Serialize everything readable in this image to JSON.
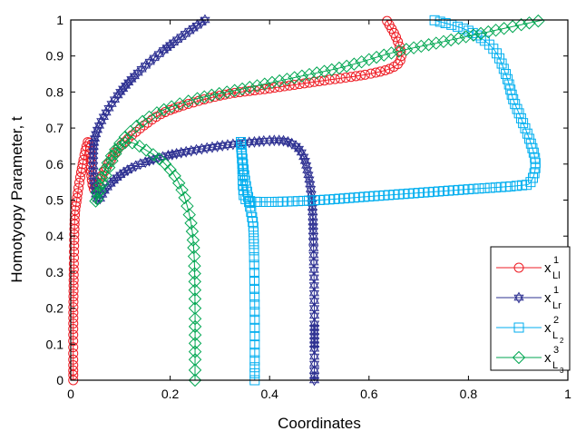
{
  "chart_data": {
    "type": "line",
    "title": "",
    "xlabel": "Coordinates",
    "ylabel": "Homotyopy Parameter, t",
    "xlim": [
      0,
      1
    ],
    "ylim": [
      0,
      1
    ],
    "xticks": [
      "0",
      "0.2",
      "0.4",
      "0.6",
      "0.8",
      "1"
    ],
    "yticks": [
      "0",
      "0.1",
      "0.2",
      "0.3",
      "0.4",
      "0.5",
      "0.6",
      "0.7",
      "0.8",
      "0.9",
      "1"
    ],
    "grid": false,
    "legend_placement": "bottom-right",
    "series": [
      {
        "name": "x_Ll^1",
        "label_base": "x",
        "label_sub": "Ll",
        "label_sup": "1",
        "color": "#ee1c24",
        "marker": "circle",
        "points": [
          [
            0.005,
            0
          ],
          [
            0.005,
            0.15
          ],
          [
            0.006,
            0.3
          ],
          [
            0.008,
            0.45
          ],
          [
            0.012,
            0.5
          ],
          [
            0.02,
            0.57
          ],
          [
            0.03,
            0.64
          ],
          [
            0.037,
            0.665
          ],
          [
            0.04,
            0.62
          ],
          [
            0.042,
            0.56
          ],
          [
            0.048,
            0.53
          ],
          [
            0.06,
            0.56
          ],
          [
            0.08,
            0.61
          ],
          [
            0.1,
            0.65
          ],
          [
            0.15,
            0.71
          ],
          [
            0.2,
            0.75
          ],
          [
            0.3,
            0.79
          ],
          [
            0.4,
            0.81
          ],
          [
            0.5,
            0.83
          ],
          [
            0.6,
            0.85
          ],
          [
            0.65,
            0.87
          ],
          [
            0.665,
            0.9
          ],
          [
            0.655,
            0.95
          ],
          [
            0.635,
            1
          ]
        ]
      },
      {
        "name": "x_Lr^1",
        "label_base": "x",
        "label_sub": "Lr",
        "label_sup": "1",
        "color": "#2e3192",
        "marker": "star",
        "points": [
          [
            0.49,
            0
          ],
          [
            0.49,
            0.2
          ],
          [
            0.488,
            0.4
          ],
          [
            0.485,
            0.5
          ],
          [
            0.478,
            0.57
          ],
          [
            0.465,
            0.63
          ],
          [
            0.44,
            0.66
          ],
          [
            0.4,
            0.665
          ],
          [
            0.3,
            0.65
          ],
          [
            0.2,
            0.625
          ],
          [
            0.14,
            0.6
          ],
          [
            0.1,
            0.57
          ],
          [
            0.07,
            0.53
          ],
          [
            0.055,
            0.5
          ],
          [
            0.047,
            0.55
          ],
          [
            0.045,
            0.62
          ],
          [
            0.05,
            0.68
          ],
          [
            0.07,
            0.74
          ],
          [
            0.1,
            0.8
          ],
          [
            0.14,
            0.86
          ],
          [
            0.2,
            0.93
          ],
          [
            0.27,
            1
          ]
        ]
      },
      {
        "name": "x_L2^2",
        "label_base": "x",
        "label_sub": "L",
        "label_subsub": "2",
        "label_sup": "2",
        "color": "#00aeef",
        "marker": "square",
        "points": [
          [
            0.37,
            0
          ],
          [
            0.37,
            0.2
          ],
          [
            0.368,
            0.4
          ],
          [
            0.365,
            0.45
          ],
          [
            0.358,
            0.5
          ],
          [
            0.35,
            0.56
          ],
          [
            0.345,
            0.62
          ],
          [
            0.342,
            0.665
          ],
          [
            0.345,
            0.6
          ],
          [
            0.347,
            0.53
          ],
          [
            0.355,
            0.5
          ],
          [
            0.4,
            0.495
          ],
          [
            0.5,
            0.5
          ],
          [
            0.6,
            0.51
          ],
          [
            0.7,
            0.52
          ],
          [
            0.8,
            0.53
          ],
          [
            0.9,
            0.54
          ],
          [
            0.925,
            0.55
          ],
          [
            0.935,
            0.6
          ],
          [
            0.925,
            0.66
          ],
          [
            0.905,
            0.73
          ],
          [
            0.89,
            0.78
          ],
          [
            0.875,
            0.85
          ],
          [
            0.85,
            0.92
          ],
          [
            0.8,
            0.97
          ],
          [
            0.73,
            1
          ]
        ]
      },
      {
        "name": "x_L3^3",
        "label_base": "x",
        "label_sub": "L",
        "label_subsub": "3",
        "label_sup": "3",
        "color": "#00a651",
        "marker": "diamond",
        "points": [
          [
            0.25,
            0
          ],
          [
            0.25,
            0.2
          ],
          [
            0.248,
            0.35
          ],
          [
            0.24,
            0.45
          ],
          [
            0.22,
            0.54
          ],
          [
            0.19,
            0.6
          ],
          [
            0.15,
            0.64
          ],
          [
            0.12,
            0.66
          ],
          [
            0.1,
            0.65
          ],
          [
            0.08,
            0.6
          ],
          [
            0.06,
            0.53
          ],
          [
            0.05,
            0.49
          ],
          [
            0.055,
            0.53
          ],
          [
            0.07,
            0.59
          ],
          [
            0.09,
            0.64
          ],
          [
            0.12,
            0.69
          ],
          [
            0.17,
            0.74
          ],
          [
            0.25,
            0.78
          ],
          [
            0.35,
            0.81
          ],
          [
            0.45,
            0.84
          ],
          [
            0.55,
            0.87
          ],
          [
            0.65,
            0.91
          ],
          [
            0.75,
            0.94
          ],
          [
            0.85,
            0.97
          ],
          [
            0.95,
            1
          ]
        ]
      }
    ]
  }
}
